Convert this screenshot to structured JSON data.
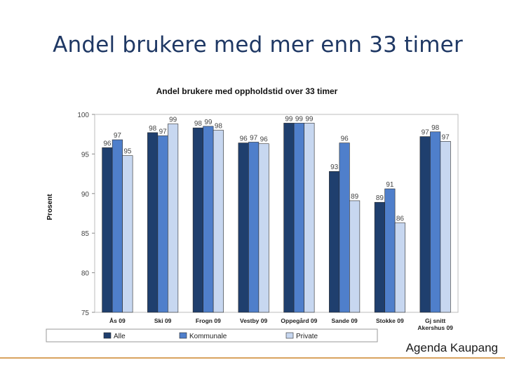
{
  "slide": {
    "title": "Andel brukere med mer enn 33 timer",
    "footer": "Agenda Kaupang"
  },
  "chart_data": {
    "type": "bar",
    "title": "Andel brukere med oppholdstid over 33 timer",
    "xlabel": "",
    "ylabel": "Prosent",
    "ylim": [
      75,
      100
    ],
    "yticks": [
      75,
      80,
      85,
      90,
      95,
      100
    ],
    "grid": false,
    "legend_position": "bottom",
    "categories": [
      "Ås 09",
      "Ski 09",
      "Frogn 09",
      "Vestby 09",
      "Oppegård 09",
      "Sande 09",
      "Stokke 09",
      "Gj snitt Akershus 09"
    ],
    "series": [
      {
        "name": "Alle",
        "color": "#1f3f6e",
        "values": [
          96,
          98,
          98,
          96,
          99,
          93,
          89,
          97
        ]
      },
      {
        "name": "Kommunale",
        "color": "#4f7fcb",
        "values": [
          97,
          97,
          99,
          97,
          99,
          96,
          91,
          98
        ]
      },
      {
        "name": "Private",
        "color": "#c7d7f0",
        "values": [
          95,
          99,
          98,
          96,
          99,
          89,
          86,
          97
        ]
      }
    ],
    "data_labels": [
      [
        "96",
        "97",
        "95"
      ],
      [
        "98",
        "97",
        "99"
      ],
      [
        "98",
        "99",
        "98"
      ],
      [
        "96",
        "97",
        "96"
      ],
      [
        "99",
        "99",
        "99"
      ],
      [
        "93",
        "96",
        "89"
      ],
      [
        "89",
        "91",
        "86"
      ],
      [
        "97",
        "98",
        "97"
      ]
    ],
    "bar_tops": [
      [
        95.8,
        96.8,
        94.8
      ],
      [
        97.7,
        97.3,
        98.8
      ],
      [
        98.3,
        98.5,
        98.0
      ],
      [
        96.4,
        96.5,
        96.3
      ],
      [
        98.9,
        98.9,
        98.9
      ],
      [
        92.8,
        96.4,
        89.1
      ],
      [
        88.9,
        90.6,
        86.3
      ],
      [
        97.2,
        97.8,
        96.6
      ]
    ]
  }
}
